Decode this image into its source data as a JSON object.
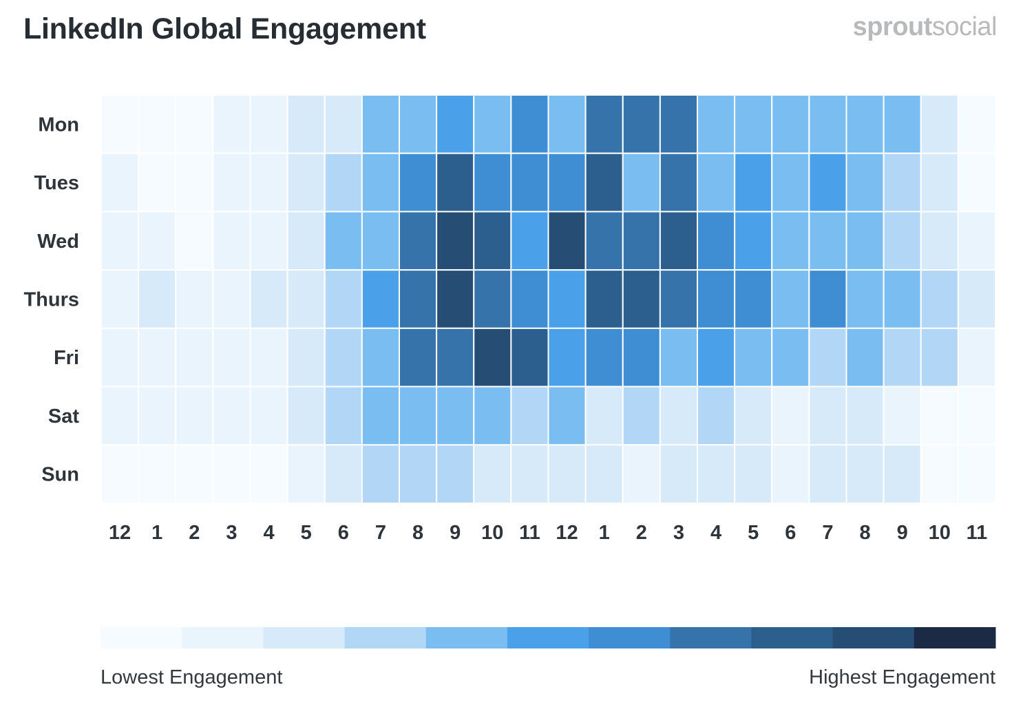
{
  "header": {
    "title": "LinkedIn Global Engagement",
    "brand_part1": "sprout",
    "brand_part2": "social"
  },
  "colors": {
    "scale": [
      "#f6fbff",
      "#eaf4fd",
      "#d6eaf9",
      "#b2d7f6",
      "#7abdf1",
      "#4ba1e9",
      "#3f8dd3",
      "#3673aa",
      "#2c5e8e",
      "#264e74",
      "#1c2b45"
    ],
    "text_dark": "#2f343a",
    "grid_line": "#ffffff"
  },
  "chart_data": {
    "type": "heatmap",
    "title": "LinkedIn Global Engagement",
    "rows": [
      "Mon",
      "Tues",
      "Wed",
      "Thurs",
      "Fri",
      "Sat",
      "Sun"
    ],
    "columns": [
      "12",
      "1",
      "2",
      "3",
      "4",
      "5",
      "6",
      "7",
      "8",
      "9",
      "10",
      "11",
      "12",
      "1",
      "2",
      "3",
      "4",
      "5",
      "6",
      "7",
      "8",
      "9",
      "10",
      "11"
    ],
    "scale_min": 0,
    "scale_max": 10,
    "values": [
      [
        0,
        0,
        0,
        1,
        1,
        2,
        2,
        4,
        4,
        5,
        4,
        6,
        4,
        7,
        7,
        7,
        4,
        4,
        4,
        4,
        4,
        4,
        2,
        0
      ],
      [
        1,
        0,
        0,
        1,
        1,
        2,
        3,
        4,
        6,
        8,
        6,
        6,
        6,
        8,
        4,
        7,
        4,
        5,
        4,
        5,
        4,
        3,
        2,
        0
      ],
      [
        1,
        1,
        0,
        1,
        1,
        2,
        4,
        4,
        7,
        9,
        8,
        5,
        9,
        7,
        7,
        8,
        6,
        5,
        4,
        4,
        4,
        3,
        2,
        1
      ],
      [
        1,
        2,
        1,
        1,
        2,
        2,
        3,
        5,
        7,
        9,
        7,
        6,
        5,
        8,
        8,
        7,
        6,
        6,
        4,
        6,
        4,
        4,
        3,
        2
      ],
      [
        1,
        1,
        1,
        1,
        1,
        2,
        3,
        4,
        7,
        7,
        9,
        8,
        5,
        6,
        6,
        4,
        5,
        4,
        4,
        3,
        4,
        3,
        3,
        1
      ],
      [
        1,
        1,
        1,
        1,
        1,
        2,
        3,
        4,
        4,
        4,
        4,
        3,
        4,
        2,
        3,
        2,
        3,
        2,
        1,
        2,
        2,
        1,
        0,
        0
      ],
      [
        0,
        0,
        0,
        0,
        0,
        1,
        2,
        3,
        3,
        3,
        2,
        2,
        2,
        2,
        1,
        2,
        2,
        2,
        1,
        2,
        2,
        2,
        0,
        0
      ]
    ],
    "legend": {
      "low_label": "Lowest Engagement",
      "high_label": "Highest Engagement",
      "steps": 11
    }
  }
}
